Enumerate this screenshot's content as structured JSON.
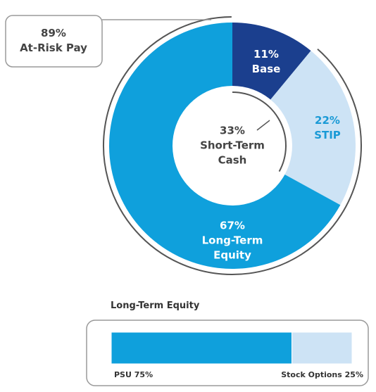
{
  "chart_data": [
    {
      "type": "donut",
      "categories": [
        "Base",
        "STIP",
        "Long-Term Equity"
      ],
      "values": [
        11,
        22,
        67
      ],
      "value_labels": [
        "11%",
        "22%",
        "67%"
      ],
      "colors": [
        "#1b3f8e",
        "#cde3f5",
        "#0fa0dc"
      ],
      "label_colors": [
        "#ffffff",
        "#1a9ad6",
        "#ffffff"
      ],
      "annotations": [
        {
          "value": 33,
          "value_label": "33%",
          "label": "Short-Term Cash"
        },
        {
          "value": 89,
          "value_label": "89%",
          "label": "At-Risk Pay"
        }
      ]
    },
    {
      "type": "stacked-bar",
      "title": "Long-Term Equity",
      "series": [
        {
          "name": "PSU",
          "values": [
            75
          ],
          "value_labels": [
            "75%"
          ],
          "color": "#0fa0dc"
        },
        {
          "name": "Stock Options",
          "values": [
            25
          ],
          "value_labels": [
            "25%"
          ],
          "color": "#cde3f5"
        }
      ]
    }
  ]
}
